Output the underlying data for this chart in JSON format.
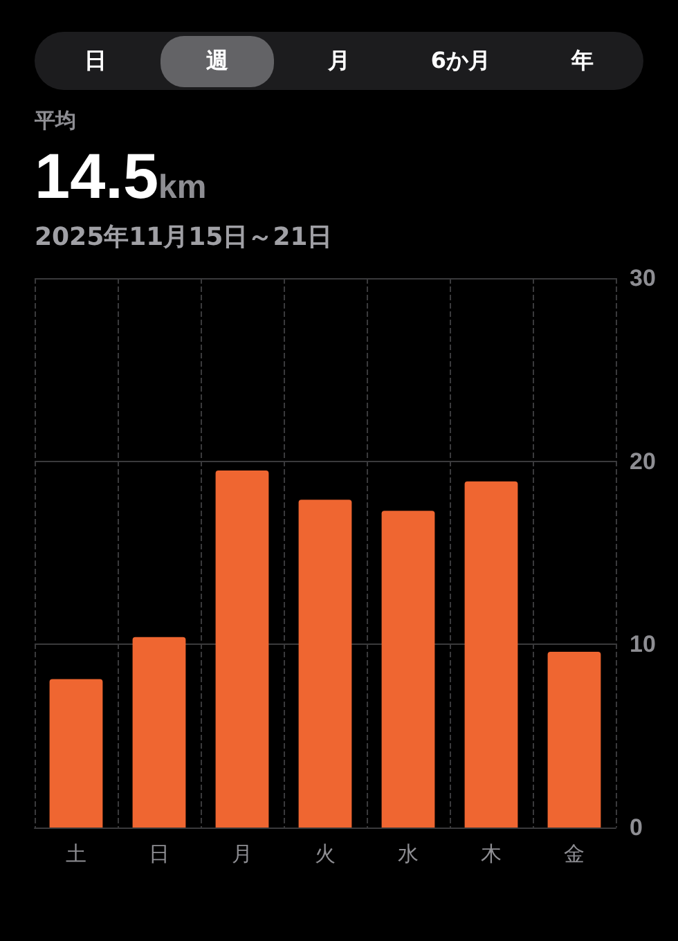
{
  "chart_data": {
    "type": "bar",
    "title": "平均",
    "subtitle": "14.5km",
    "annotations": [
      "日",
      "週",
      "月",
      "6か月",
      "年",
      "2025年11月15日～21日"
    ],
    "categories": [
      "土",
      "日",
      "月",
      "火",
      "水",
      "木",
      "金"
    ],
    "values": [
      8.1,
      10.4,
      19.5,
      17.9,
      17.3,
      18.9,
      9.6
    ],
    "color": "#ef6631",
    "ylim": [
      0,
      30
    ],
    "yticks": [
      0,
      10,
      20,
      30
    ],
    "grid": true
  }
}
